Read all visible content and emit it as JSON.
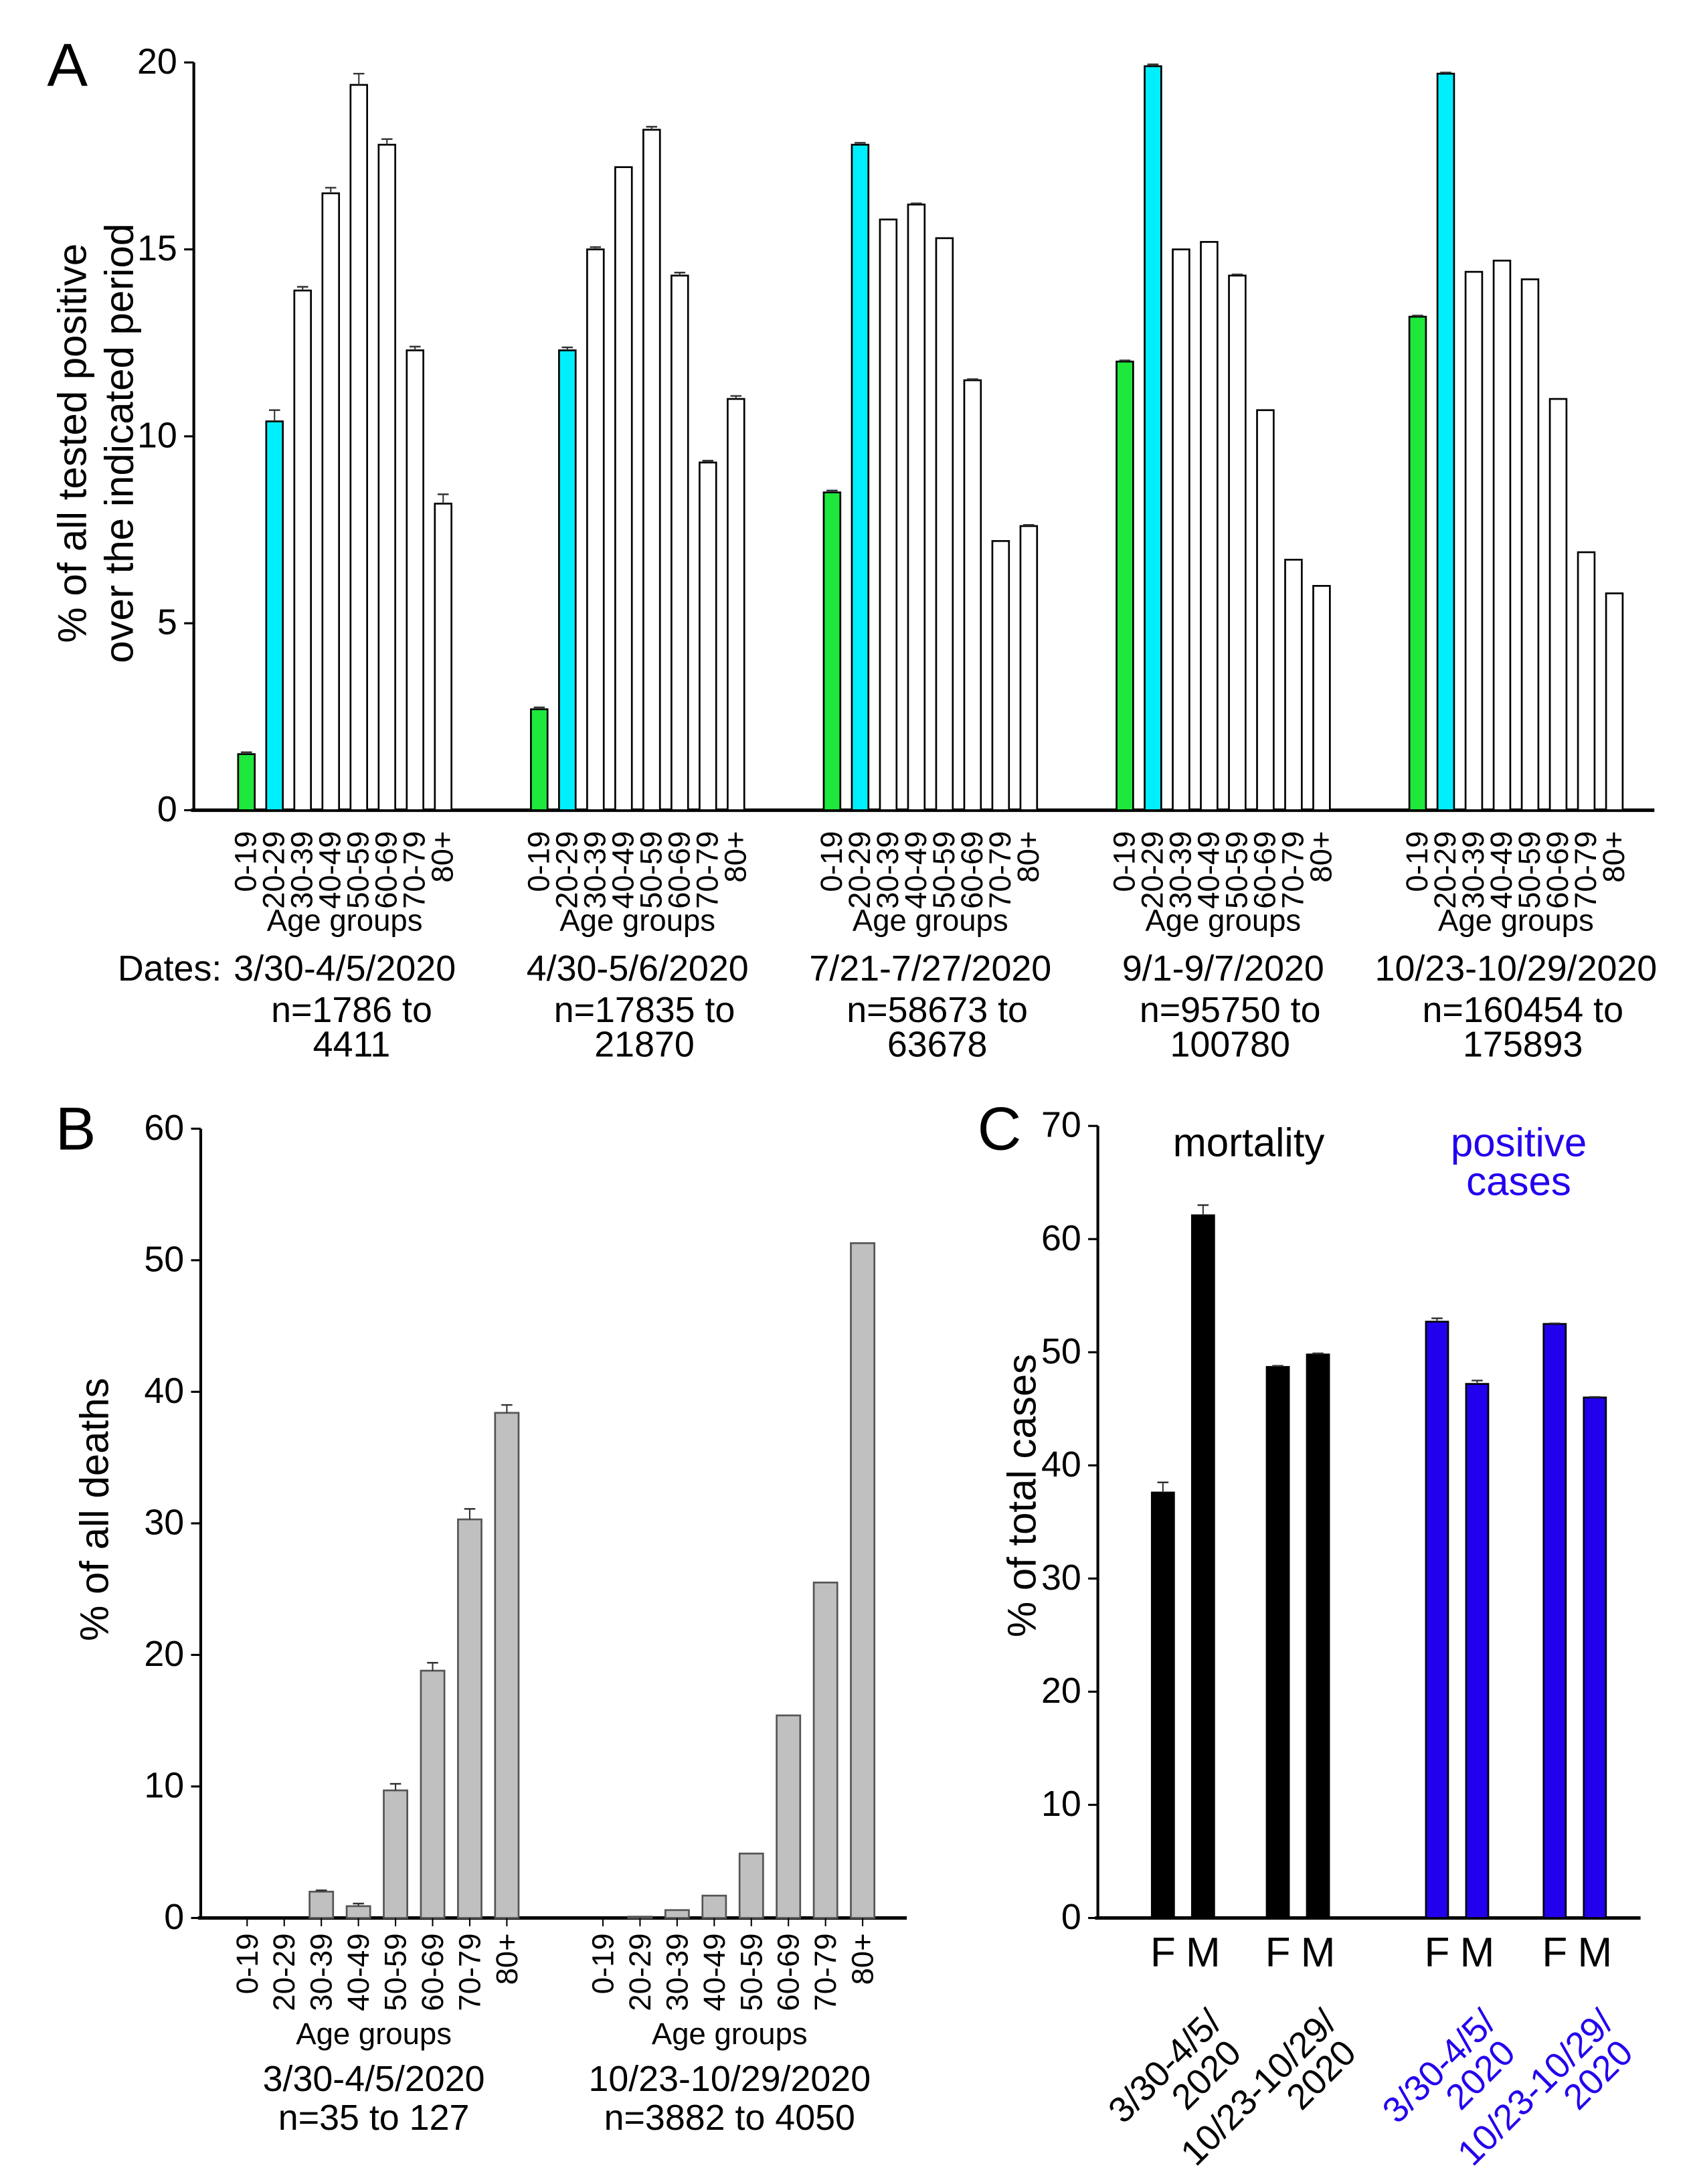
{
  "chart_data": [
    {
      "panel": "A",
      "type": "bar",
      "ylabel": [
        "% of all tested positive",
        "over the indicated period"
      ],
      "ylim": [
        0,
        20
      ],
      "yticks": [
        "0",
        "5",
        "10",
        "15",
        "20"
      ],
      "xlabel": "Age groups",
      "dates_label": "Dates:",
      "categories": [
        "0-19",
        "20-29",
        "30-39",
        "40-49",
        "50-59",
        "60-69",
        "70-79",
        "80+"
      ],
      "colors": {
        "0-19": "#1ee83c",
        "20-29": "#00efff",
        "other": "#ffffff"
      },
      "groups": [
        {
          "date": "3/30-4/5/2020",
          "n1": "n=1786 to",
          "n2": "4411",
          "values": [
            1.5,
            10.4,
            13.9,
            16.5,
            19.4,
            17.8,
            12.3,
            8.2
          ],
          "errors": [
            0.05,
            0.3,
            0.1,
            0.15,
            0.3,
            0.15,
            0.1,
            0.25
          ]
        },
        {
          "date": "4/30-5/6/2020",
          "n1": "n=17835 to",
          "n2": "21870",
          "values": [
            2.7,
            12.3,
            15.0,
            17.2,
            18.2,
            14.3,
            9.3,
            11.0
          ],
          "errors": [
            0.05,
            0.08,
            0.06,
            0.0,
            0.08,
            0.08,
            0.05,
            0.08
          ]
        },
        {
          "date": "7/21-7/27/2020",
          "n1": "n=58673 to",
          "n2": "63678",
          "values": [
            8.5,
            17.8,
            15.8,
            16.2,
            15.3,
            11.5,
            7.2,
            7.6
          ],
          "errors": [
            0.05,
            0.05,
            0.0,
            0.03,
            0.0,
            0.03,
            0.0,
            0.03
          ]
        },
        {
          "date": "9/1-9/7/2020",
          "n1": "n=95750 to",
          "n2": "100780",
          "values": [
            12.0,
            19.9,
            15.0,
            15.2,
            14.3,
            10.7,
            6.7,
            6.0
          ],
          "errors": [
            0.03,
            0.05,
            0.0,
            0.0,
            0.03,
            0.0,
            0.0,
            0.0
          ]
        },
        {
          "date": "10/23-10/29/2020",
          "n1": "n=160454 to",
          "n2": "175893",
          "values": [
            13.2,
            19.7,
            14.4,
            14.7,
            14.2,
            11.0,
            6.9,
            5.8
          ],
          "errors": [
            0.03,
            0.03,
            0.0,
            0.0,
            0.0,
            0.0,
            0.0,
            0.0
          ]
        }
      ]
    },
    {
      "panel": "B",
      "type": "bar",
      "ylabel": "% of all deaths",
      "ylim": [
        0,
        60
      ],
      "yticks": [
        "0",
        "10",
        "20",
        "30",
        "40",
        "50",
        "60"
      ],
      "xlabel": "Age groups",
      "categories": [
        "0-19",
        "20-29",
        "30-39",
        "40-49",
        "50-59",
        "60-69",
        "70-79",
        "80+"
      ],
      "color": "#c0c0c0",
      "groups": [
        {
          "date": "3/30-4/5/2020",
          "n": "n=35 to 127",
          "values": [
            0,
            0,
            2.0,
            0.9,
            9.7,
            18.8,
            30.3,
            38.4
          ],
          "errors": [
            0,
            0,
            0.1,
            0.2,
            0.5,
            0.6,
            0.8,
            0.6
          ]
        },
        {
          "date": "10/23-10/29/2020",
          "n": "n=3882 to 4050",
          "values": [
            0,
            0.1,
            0.6,
            1.7,
            4.9,
            15.4,
            25.5,
            51.3
          ],
          "errors": [
            0,
            0,
            0,
            0,
            0,
            0,
            0,
            0
          ]
        }
      ]
    },
    {
      "panel": "C",
      "type": "bar",
      "ylabel": "% of total cases",
      "ylim": [
        0,
        70
      ],
      "yticks": [
        "0",
        "10",
        "20",
        "30",
        "40",
        "50",
        "60",
        "70"
      ],
      "series_labels": [
        {
          "text": [
            "mortality"
          ],
          "color": "#000000"
        },
        {
          "text": [
            "positive",
            "cases"
          ],
          "color": "#2200ee"
        }
      ],
      "groups": [
        {
          "date1": "3/30-4/5/",
          "date2": "2020",
          "color": "#000000",
          "categories": [
            "F",
            "M"
          ],
          "values": [
            37.6,
            62.1
          ],
          "errors": [
            0.9,
            0.9
          ]
        },
        {
          "date1": "10/23-10/29/",
          "date2": "2020",
          "color": "#000000",
          "categories": [
            "F",
            "M"
          ],
          "values": [
            48.7,
            49.8
          ],
          "errors": [
            0.1,
            0.1
          ]
        },
        {
          "date1": "3/30-4/5/",
          "date2": "2020",
          "color": "#2200ee",
          "categories": [
            "F",
            "M"
          ],
          "values": [
            52.7,
            47.2
          ],
          "errors": [
            0.3,
            0.3
          ]
        },
        {
          "date1": "10/23-10/29/",
          "date2": "2020",
          "color": "#2200ee",
          "categories": [
            "F",
            "M"
          ],
          "values": [
            52.5,
            46.0
          ],
          "errors": [
            0.05,
            0.05
          ]
        }
      ]
    }
  ]
}
